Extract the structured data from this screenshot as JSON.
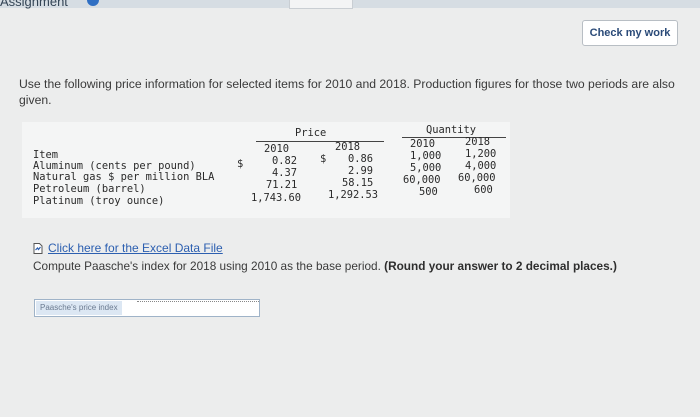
{
  "header": {
    "title": "Assignment",
    "check_label": "Check my work"
  },
  "prompt": "Use the following price information for selected items for 2010 and 2018. Production figures for those two periods are also given.",
  "table": {
    "price_header": "Price",
    "quantity_header": "Quantity",
    "item_header": "Item",
    "years": [
      "2010",
      "2018",
      "2010",
      "2018"
    ],
    "rows": [
      {
        "item": "Aluminum (cents per pound)",
        "dollar1": "$",
        "p2010": "0.82",
        "dollar2": "$",
        "p2018": "0.86",
        "q2010": "1,000",
        "q2018": "1,200"
      },
      {
        "item": "Natural gas $ per million BLA",
        "dollar1": "",
        "p2010": "4.37",
        "dollar2": "",
        "p2018": "2.99",
        "q2010": "5,000",
        "q2018": "4,000"
      },
      {
        "item": "Petroleum (barrel)",
        "dollar1": "",
        "p2010": "71.21",
        "dollar2": "",
        "p2018": "58.15",
        "q2010": "60,000",
        "q2018": "60,000"
      },
      {
        "item": "Platinum (troy ounce)",
        "dollar1": "",
        "p2010": "1,743.60",
        "dollar2": "",
        "p2018": "1,292.53",
        "q2010": "500",
        "q2018": "600"
      }
    ]
  },
  "excel_link": "Click here for the Excel Data File",
  "question": {
    "text": "Compute Paasche's index for 2018 using 2010 as the base period.",
    "bold": "(Round your answer to 2 decimal places.)"
  },
  "answer": {
    "label": "Paasche's price index",
    "value": ""
  }
}
